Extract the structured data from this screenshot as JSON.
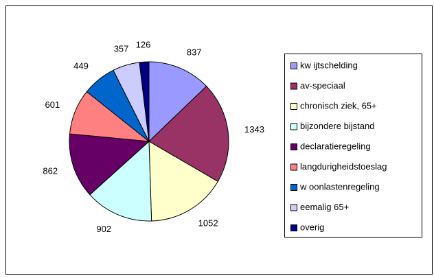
{
  "chart_data": {
    "type": "pie",
    "categories": [
      "kw ijtschelding",
      "av-speciaal",
      "chronisch ziek, 65+",
      "bijzondere bijstand",
      "declaratieregeling",
      "langdurigheidstoeslag",
      "w oonlastenregeling",
      "eemalig 65+",
      "overig"
    ],
    "values": [
      837,
      1343,
      1052,
      902,
      862,
      601,
      449,
      357,
      126
    ],
    "colors": [
      "#9999ff",
      "#993366",
      "#ffffcc",
      "#ccffff",
      "#660066",
      "#ff8080",
      "#0066cc",
      "#ccccff",
      "#000080"
    ],
    "legend": "right"
  }
}
